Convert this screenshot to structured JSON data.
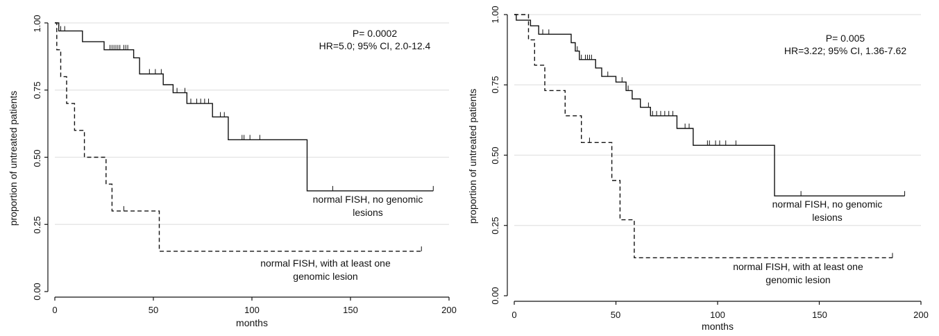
{
  "chart_data": [
    {
      "type": "line",
      "chart_kind": "kaplan-meier step curves",
      "xlabel": "months",
      "ylabel": "proportion of untreated patients",
      "xlim": [
        0,
        200
      ],
      "ylim": [
        0,
        1
      ],
      "x_ticks": [
        "0",
        "50",
        "100",
        "150",
        "200"
      ],
      "y_ticks": [
        "0.00",
        "0.25",
        "0.50",
        "0.75",
        "1.00"
      ],
      "grid": "horizontal",
      "stats": {
        "p": "P= 0.0002",
        "hr": "HR=5.0; 95% CI, 2.0-12.4"
      },
      "series": [
        {
          "name": "normal FISH, no genomic lesions",
          "label_lines": [
            "normal FISH, no genomic",
            "lesions"
          ],
          "style": "solid",
          "color": "#111111",
          "steps": [
            [
              0,
              1.0
            ],
            [
              2,
              0.97
            ],
            [
              14,
              0.93
            ],
            [
              25,
              0.9
            ],
            [
              40,
              0.87
            ],
            [
              43,
              0.81
            ],
            [
              55,
              0.77
            ],
            [
              60,
              0.74
            ],
            [
              67,
              0.7
            ],
            [
              80,
              0.65
            ],
            [
              88,
              0.565
            ],
            [
              128,
              0.375
            ],
            [
              192,
              0.375
            ]
          ],
          "censored": [
            3,
            5,
            28,
            29,
            30,
            31,
            32,
            33,
            35,
            36,
            37,
            48,
            51,
            54,
            62,
            66,
            69,
            72,
            74,
            76,
            78,
            84,
            86,
            95,
            96,
            99,
            104,
            141,
            192
          ]
        },
        {
          "name": "normal FISH, with at least one genomic lesion",
          "label_lines": [
            "normal FISH, with at least one",
            "genomic lesion"
          ],
          "style": "dashed",
          "color": "#111111",
          "steps": [
            [
              0,
              1.0
            ],
            [
              1,
              0.9
            ],
            [
              3,
              0.8
            ],
            [
              6,
              0.7
            ],
            [
              10,
              0.6
            ],
            [
              15,
              0.5
            ],
            [
              26,
              0.4
            ],
            [
              29,
              0.3
            ],
            [
              53,
              0.15
            ],
            [
              186,
              0.15
            ]
          ],
          "censored": [
            35,
            186
          ]
        }
      ]
    },
    {
      "type": "line",
      "chart_kind": "kaplan-meier step curves",
      "xlabel": "months",
      "ylabel": "proportion of untreated patients",
      "xlim": [
        0,
        200
      ],
      "ylim": [
        0,
        1
      ],
      "x_ticks": [
        "0",
        "50",
        "100",
        "150",
        "200"
      ],
      "y_ticks": [
        "0.00",
        "0.25",
        "0.50",
        "0.75",
        "1.00"
      ],
      "grid": "horizontal",
      "stats": {
        "p": "P= 0.005",
        "hr": "HR=3.22; 95% CI, 1.36-7.62"
      },
      "series": [
        {
          "name": "normal FISH, no genomic lesions",
          "label_lines": [
            "normal FISH, no genomic",
            "lesions"
          ],
          "style": "solid",
          "color": "#111111",
          "steps": [
            [
              0,
              1.0
            ],
            [
              1,
              0.98
            ],
            [
              8,
              0.96
            ],
            [
              12,
              0.93
            ],
            [
              28,
              0.9
            ],
            [
              30,
              0.87
            ],
            [
              32,
              0.84
            ],
            [
              40,
              0.81
            ],
            [
              43,
              0.78
            ],
            [
              50,
              0.76
            ],
            [
              55,
              0.73
            ],
            [
              58,
              0.7
            ],
            [
              62,
              0.67
            ],
            [
              67,
              0.64
            ],
            [
              80,
              0.595
            ],
            [
              88,
              0.535
            ],
            [
              128,
              0.355
            ],
            [
              192,
              0.355
            ]
          ],
          "censored": [
            14,
            17,
            31,
            33,
            35,
            36,
            37,
            38,
            46,
            53,
            56,
            66,
            68,
            70,
            72,
            74,
            76,
            78,
            84,
            86,
            95,
            96,
            99,
            101,
            104,
            109,
            141,
            192
          ]
        },
        {
          "name": "normal FISH, with at least one genomic lesion",
          "label_lines": [
            "normal FISH, with at least one",
            "genomic lesion"
          ],
          "style": "dashed",
          "color": "#111111",
          "steps": [
            [
              0,
              1.0
            ],
            [
              7,
              0.91
            ],
            [
              10,
              0.82
            ],
            [
              15,
              0.73
            ],
            [
              25,
              0.64
            ],
            [
              33,
              0.545
            ],
            [
              48,
              0.41
            ],
            [
              52,
              0.27
            ],
            [
              59,
              0.135
            ],
            [
              186,
              0.135
            ]
          ],
          "censored": [
            37,
            186
          ]
        }
      ]
    }
  ]
}
